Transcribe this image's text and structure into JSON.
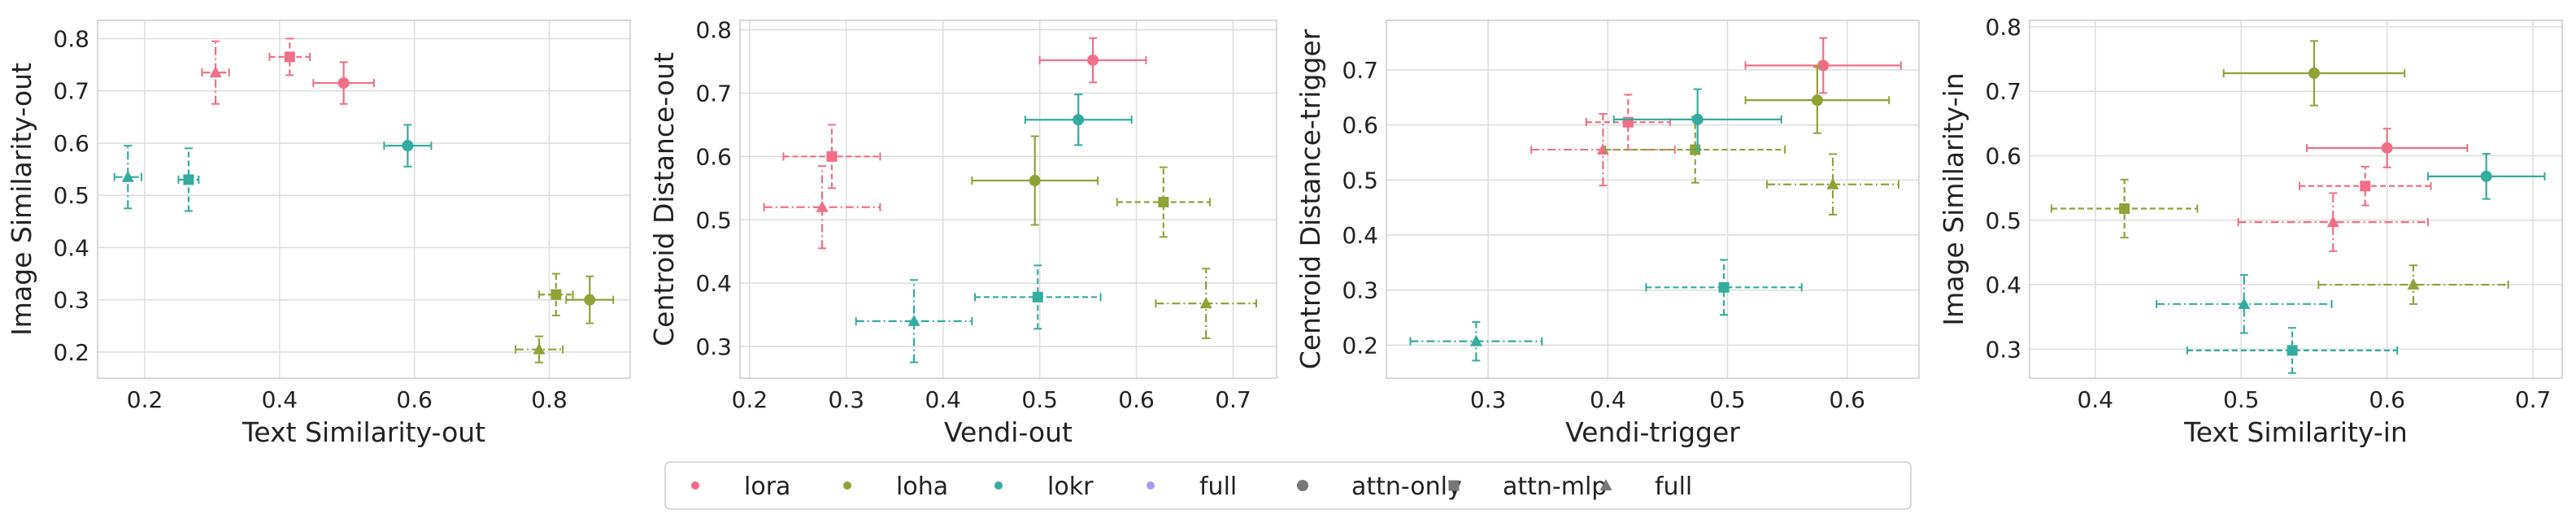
{
  "colors": {
    "lora": "#f06f87",
    "loha": "#8ea238",
    "lokr": "#34ab9f",
    "full": "#a69bf2",
    "neutral": "#777777",
    "grid": "#dcdcdc",
    "frame": "#cccccc"
  },
  "legend": {
    "placement": "bottom-center",
    "items": [
      {
        "label": "lora",
        "kind": "color",
        "key": "lora"
      },
      {
        "label": "loha",
        "kind": "color",
        "key": "loha"
      },
      {
        "label": "lokr",
        "kind": "color",
        "key": "lokr"
      },
      {
        "label": "full",
        "kind": "color",
        "key": "full"
      },
      {
        "label": "attn-only",
        "kind": "marker",
        "marker": "circle"
      },
      {
        "label": "attn-mlp",
        "kind": "marker",
        "marker": "square"
      },
      {
        "label": "full",
        "kind": "marker",
        "marker": "triangle"
      }
    ]
  },
  "chart_data": [
    {
      "type": "scatter",
      "xlabel": "Text Similarity-out",
      "ylabel": "Image Similarity-out",
      "xlim": [
        0.13,
        0.92
      ],
      "ylim": [
        0.15,
        0.835
      ],
      "xticks": [
        "0.2",
        "0.4",
        "0.6",
        "0.8"
      ],
      "yticks": [
        "0.2",
        "0.3",
        "0.4",
        "0.5",
        "0.6",
        "0.7",
        "0.8"
      ],
      "grid": true,
      "points": [
        {
          "method": "lora",
          "variant": "attn-only",
          "x": 0.495,
          "xerr": 0.045,
          "y": 0.715,
          "yerr": 0.04
        },
        {
          "method": "lora",
          "variant": "attn-mlp",
          "x": 0.415,
          "xerr": 0.03,
          "y": 0.765,
          "yerr": 0.035
        },
        {
          "method": "lora",
          "variant": "full",
          "x": 0.305,
          "xerr": 0.02,
          "y": 0.735,
          "yerr": 0.06
        },
        {
          "method": "loha",
          "variant": "attn-only",
          "x": 0.86,
          "xerr": 0.035,
          "y": 0.3,
          "yerr": 0.045
        },
        {
          "method": "loha",
          "variant": "attn-mlp",
          "x": 0.81,
          "xerr": 0.025,
          "y": 0.31,
          "yerr": 0.04
        },
        {
          "method": "loha",
          "variant": "full",
          "x": 0.785,
          "xerr": 0.035,
          "y": 0.205,
          "yerr": 0.025
        },
        {
          "method": "lokr",
          "variant": "attn-only",
          "x": 0.59,
          "xerr": 0.035,
          "y": 0.595,
          "yerr": 0.04
        },
        {
          "method": "lokr",
          "variant": "attn-mlp",
          "x": 0.265,
          "xerr": 0.015,
          "y": 0.53,
          "yerr": 0.06
        },
        {
          "method": "lokr",
          "variant": "full",
          "x": 0.175,
          "xerr": 0.02,
          "y": 0.535,
          "yerr": 0.06
        }
      ]
    },
    {
      "type": "scatter",
      "xlabel": "Vendi-out",
      "ylabel": "Centroid Distance-out",
      "xlim": [
        0.19,
        0.745
      ],
      "ylim": [
        0.25,
        0.815
      ],
      "xticks": [
        "0.2",
        "0.3",
        "0.4",
        "0.5",
        "0.6",
        "0.7"
      ],
      "yticks": [
        "0.3",
        "0.4",
        "0.5",
        "0.6",
        "0.7",
        "0.8"
      ],
      "grid": true,
      "points": [
        {
          "method": "lora",
          "variant": "attn-only",
          "x": 0.555,
          "xerr": 0.055,
          "y": 0.752,
          "yerr": 0.035
        },
        {
          "method": "lora",
          "variant": "attn-mlp",
          "x": 0.285,
          "xerr": 0.05,
          "y": 0.6,
          "yerr": 0.05
        },
        {
          "method": "lora",
          "variant": "full",
          "x": 0.275,
          "xerr": 0.06,
          "y": 0.52,
          "yerr": 0.065
        },
        {
          "method": "loha",
          "variant": "attn-only",
          "x": 0.495,
          "xerr": 0.065,
          "y": 0.562,
          "yerr": 0.07
        },
        {
          "method": "loha",
          "variant": "attn-mlp",
          "x": 0.628,
          "xerr": 0.048,
          "y": 0.528,
          "yerr": 0.055
        },
        {
          "method": "loha",
          "variant": "full",
          "x": 0.672,
          "xerr": 0.052,
          "y": 0.368,
          "yerr": 0.055
        },
        {
          "method": "lokr",
          "variant": "attn-only",
          "x": 0.54,
          "xerr": 0.055,
          "y": 0.658,
          "yerr": 0.04
        },
        {
          "method": "lokr",
          "variant": "attn-mlp",
          "x": 0.498,
          "xerr": 0.065,
          "y": 0.378,
          "yerr": 0.05
        },
        {
          "method": "lokr",
          "variant": "full",
          "x": 0.37,
          "xerr": 0.06,
          "y": 0.34,
          "yerr": 0.065
        }
      ]
    },
    {
      "type": "scatter",
      "xlabel": "Vendi-trigger",
      "ylabel": "Centroid Distance-trigger",
      "xlim": [
        0.215,
        0.66
      ],
      "ylim": [
        0.14,
        0.79
      ],
      "xticks": [
        "0.3",
        "0.4",
        "0.5",
        "0.6"
      ],
      "yticks": [
        "0.2",
        "0.3",
        "0.4",
        "0.5",
        "0.6",
        "0.7"
      ],
      "grid": true,
      "points": [
        {
          "method": "lora",
          "variant": "attn-only",
          "x": 0.58,
          "xerr": 0.065,
          "y": 0.708,
          "yerr": 0.05
        },
        {
          "method": "lora",
          "variant": "attn-mlp",
          "x": 0.417,
          "xerr": 0.035,
          "y": 0.605,
          "yerr": 0.05
        },
        {
          "method": "lora",
          "variant": "full",
          "x": 0.396,
          "xerr": 0.06,
          "y": 0.555,
          "yerr": 0.065
        },
        {
          "method": "loha",
          "variant": "attn-only",
          "x": 0.575,
          "xerr": 0.06,
          "y": 0.645,
          "yerr": 0.06
        },
        {
          "method": "loha",
          "variant": "attn-mlp",
          "x": 0.473,
          "xerr": 0.075,
          "y": 0.555,
          "yerr": 0.06
        },
        {
          "method": "loha",
          "variant": "full",
          "x": 0.588,
          "xerr": 0.055,
          "y": 0.492,
          "yerr": 0.055
        },
        {
          "method": "lokr",
          "variant": "attn-only",
          "x": 0.475,
          "xerr": 0.07,
          "y": 0.61,
          "yerr": 0.055
        },
        {
          "method": "lokr",
          "variant": "attn-mlp",
          "x": 0.497,
          "xerr": 0.065,
          "y": 0.305,
          "yerr": 0.05
        },
        {
          "method": "lokr",
          "variant": "full",
          "x": 0.29,
          "xerr": 0.055,
          "y": 0.207,
          "yerr": 0.035
        }
      ]
    },
    {
      "type": "scatter",
      "xlabel": "Text Similarity-in",
      "ylabel": "Image Similarity-in",
      "xlim": [
        0.355,
        0.72
      ],
      "ylim": [
        0.255,
        0.81
      ],
      "xticks": [
        "0.4",
        "0.5",
        "0.6",
        "0.7"
      ],
      "yticks": [
        "0.3",
        "0.4",
        "0.5",
        "0.6",
        "0.7",
        "0.8"
      ],
      "grid": true,
      "points": [
        {
          "method": "lora",
          "variant": "attn-only",
          "x": 0.6,
          "xerr": 0.055,
          "y": 0.612,
          "yerr": 0.03
        },
        {
          "method": "lora",
          "variant": "attn-mlp",
          "x": 0.585,
          "xerr": 0.045,
          "y": 0.553,
          "yerr": 0.03
        },
        {
          "method": "lora",
          "variant": "full",
          "x": 0.563,
          "xerr": 0.065,
          "y": 0.497,
          "yerr": 0.045
        },
        {
          "method": "loha",
          "variant": "attn-only",
          "x": 0.55,
          "xerr": 0.062,
          "y": 0.728,
          "yerr": 0.05
        },
        {
          "method": "loha",
          "variant": "attn-mlp",
          "x": 0.42,
          "xerr": 0.05,
          "y": 0.518,
          "yerr": 0.045
        },
        {
          "method": "loha",
          "variant": "full",
          "x": 0.618,
          "xerr": 0.065,
          "y": 0.4,
          "yerr": 0.03
        },
        {
          "method": "lokr",
          "variant": "attn-only",
          "x": 0.668,
          "xerr": 0.04,
          "y": 0.568,
          "yerr": 0.035
        },
        {
          "method": "lokr",
          "variant": "attn-mlp",
          "x": 0.535,
          "xerr": 0.072,
          "y": 0.298,
          "yerr": 0.035
        },
        {
          "method": "lokr",
          "variant": "full",
          "x": 0.502,
          "xerr": 0.06,
          "y": 0.37,
          "yerr": 0.045
        }
      ]
    }
  ]
}
